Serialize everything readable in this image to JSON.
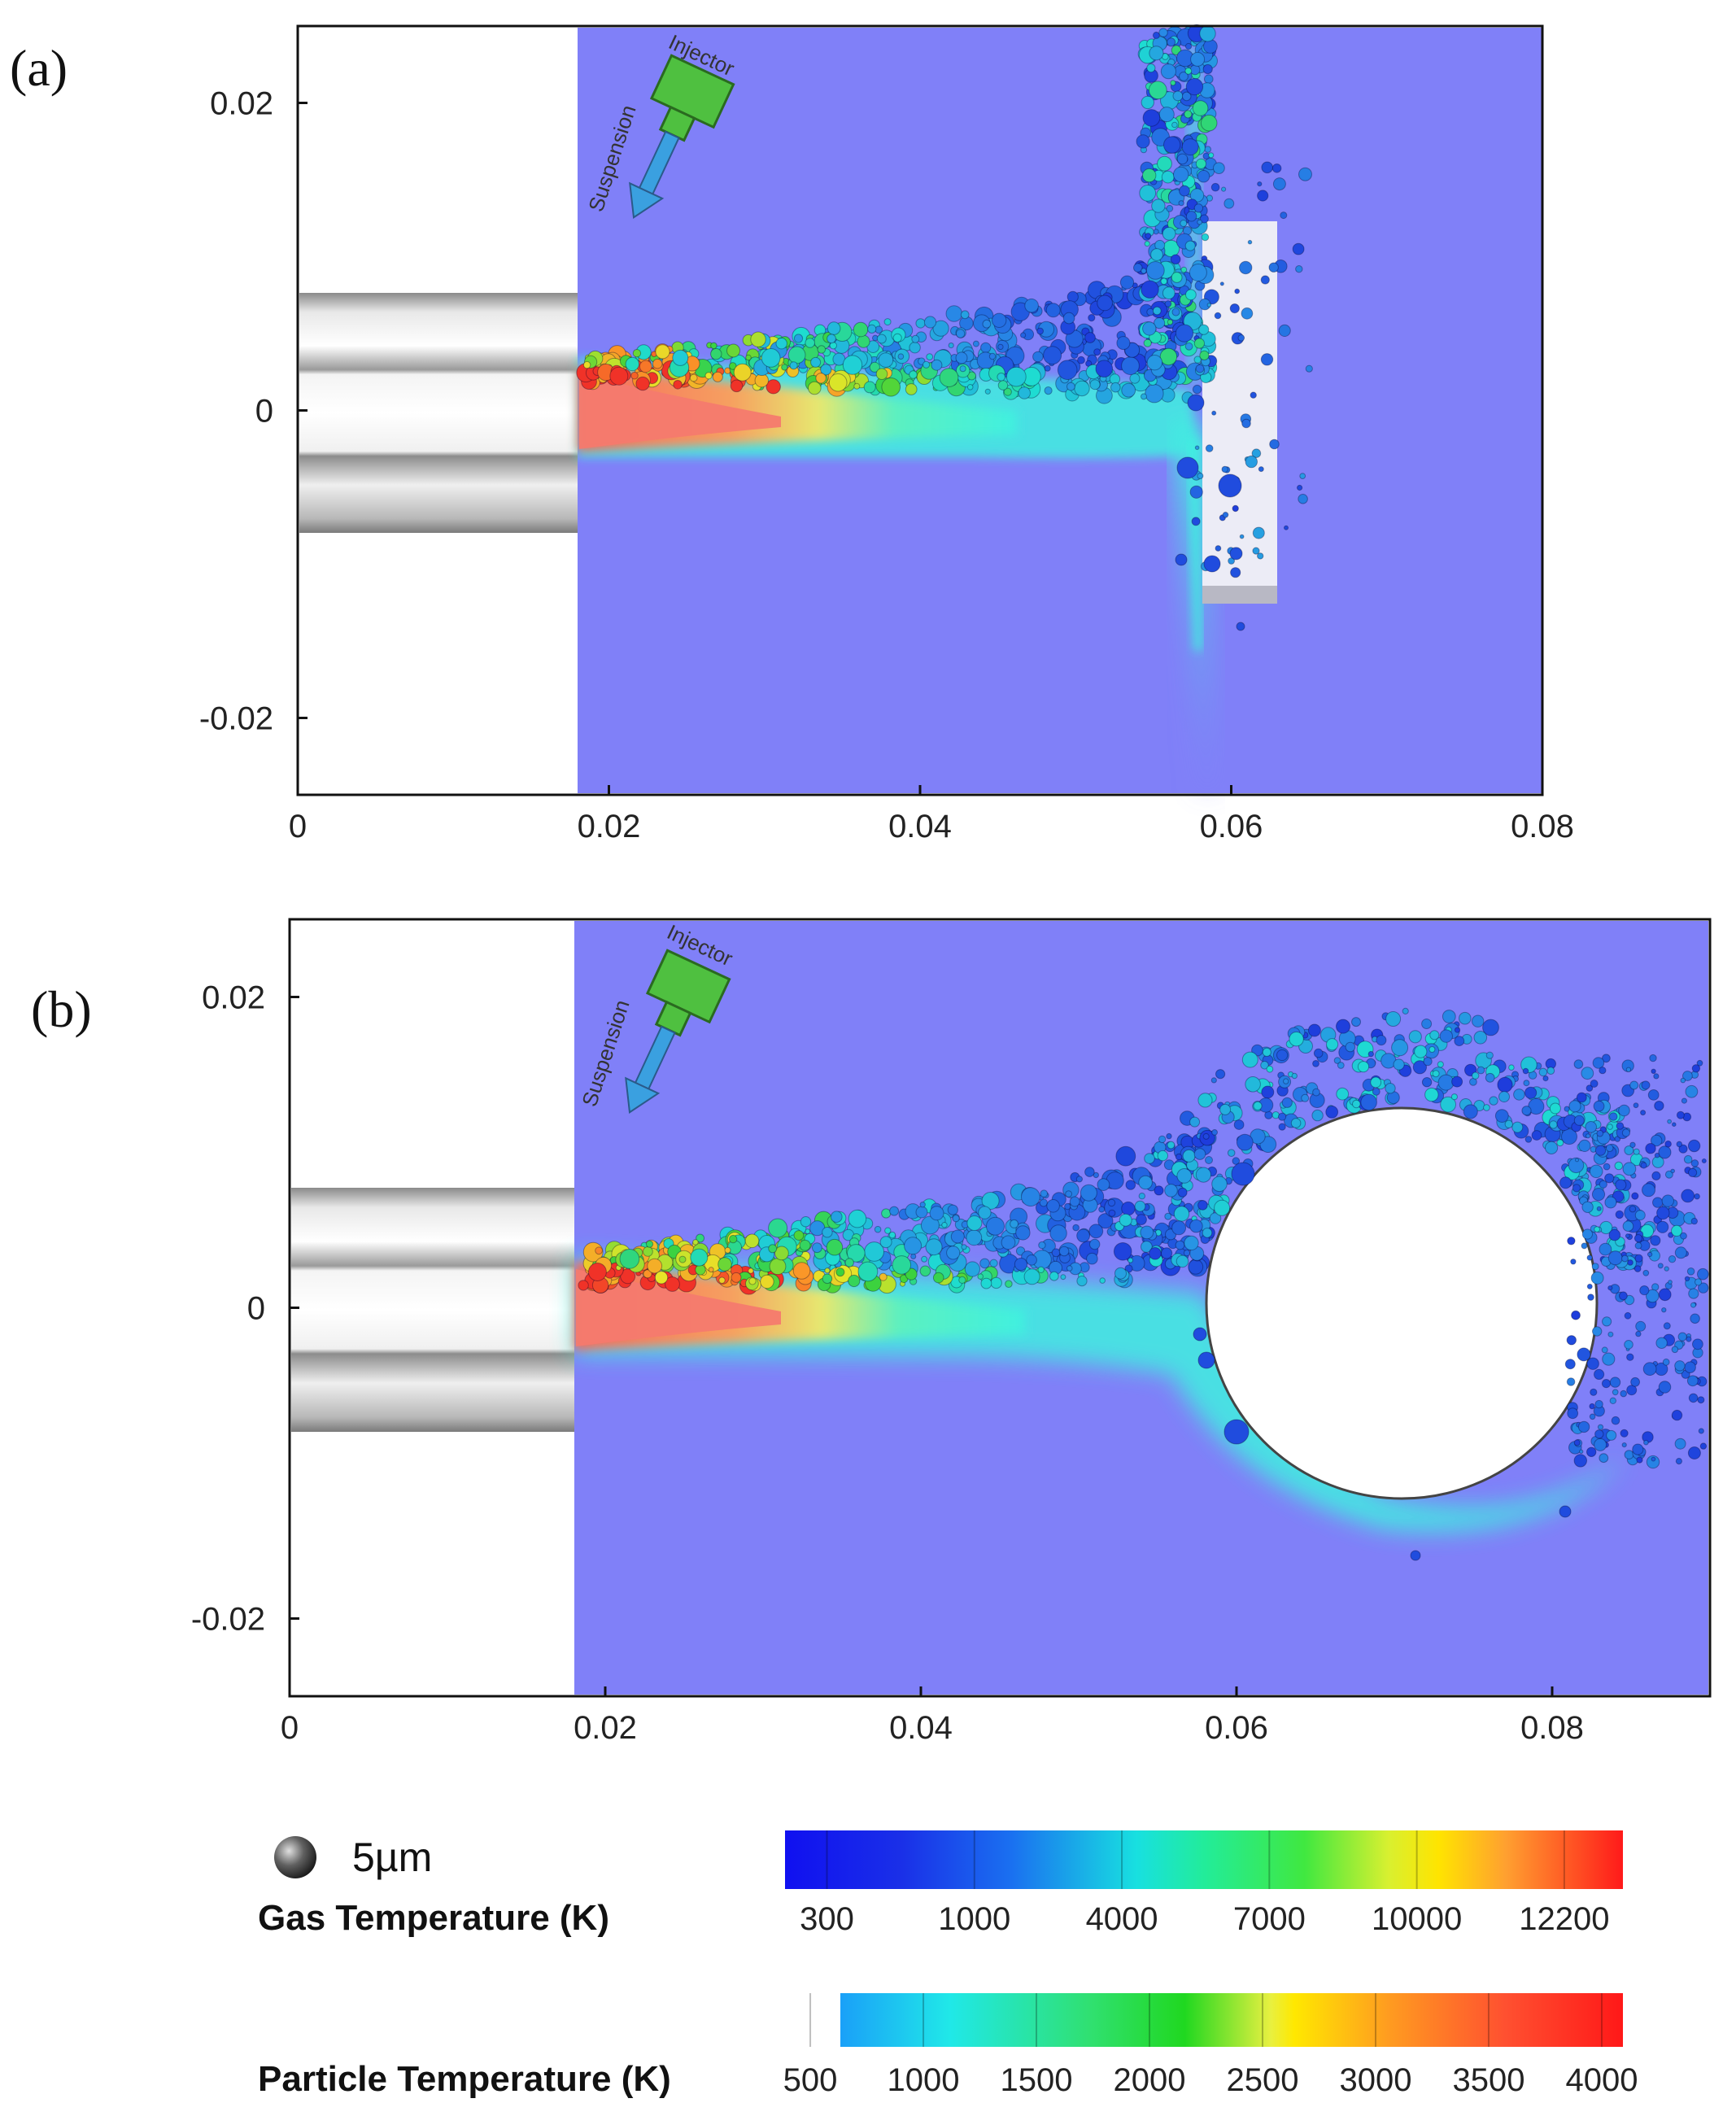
{
  "panels": [
    {
      "label": "(a)",
      "chart_data": {
        "type": "heatmap",
        "title": "",
        "xlabel": "",
        "ylabel": "",
        "xlim": [
          0,
          0.08
        ],
        "ylim": [
          -0.025,
          0.025
        ],
        "xticks": [
          "0",
          "0.02",
          "0.04",
          "0.06",
          "0.08"
        ],
        "yticks": [
          "0.02",
          "0",
          "-0.02"
        ],
        "substrate": "flat",
        "annotations": [
          "Injector",
          "Suspension"
        ]
      }
    },
    {
      "label": "(b)",
      "chart_data": {
        "type": "heatmap",
        "title": "",
        "xlabel": "",
        "ylabel": "",
        "xlim": [
          0,
          0.09
        ],
        "ylim": [
          -0.025,
          0.025
        ],
        "xticks": [
          "0",
          "0.02",
          "0.04",
          "0.06",
          "0.08"
        ],
        "yticks": [
          "0.02",
          "0",
          "-0.02"
        ],
        "substrate": "cylinder",
        "annotations": [
          "Injector",
          "Suspension"
        ]
      }
    }
  ],
  "legend": {
    "particle_size": "5µm",
    "gas_title": "Gas Temperature (K)",
    "gas_ticks": [
      "300",
      "1000",
      "4000",
      "7000",
      "10000",
      "12200"
    ],
    "particle_title": "Particle Temperature (K)",
    "particle_ticks": [
      "500",
      "1000",
      "1500",
      "2000",
      "2500",
      "3000",
      "3500",
      "4000"
    ]
  },
  "colors": {
    "background_gas": "#8080f8",
    "hot_core": "#f47a6e",
    "torch_metal": "#c8c8c8"
  }
}
